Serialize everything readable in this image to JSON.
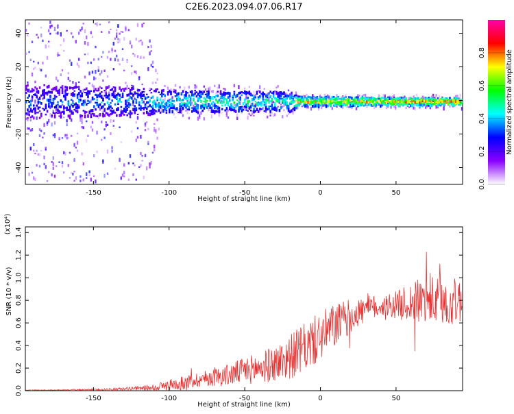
{
  "title": "C2E6.2023.094.07.06.R17",
  "chart_data": [
    {
      "type": "heatmap",
      "xlabel": "Height of straight line (km)",
      "ylabel": "Frequency (Hz)",
      "xlim": [
        -195,
        94
      ],
      "ylim": [
        -50,
        48
      ],
      "x_ticks": [
        -150,
        -100,
        -50,
        0,
        50
      ],
      "y_ticks": [
        -40,
        -20,
        0,
        20,
        40
      ],
      "colorbar": {
        "label": "Normalized spectral amplitude",
        "range": [
          0.0,
          1.0
        ],
        "ticks": [
          0.0,
          0.2,
          0.4,
          0.6,
          0.8
        ],
        "tick_labels": [
          "0.0",
          "0.2",
          "0.4",
          "0.6",
          "0.8"
        ],
        "colormap": [
          "#ffffff",
          "#8a00ff",
          "#0000ff",
          "#00ffff",
          "#00ff00",
          "#ffff00",
          "#ff0000",
          "#ff00aa"
        ]
      },
      "profile": [
        {
          "x": -195,
          "spread": 48,
          "band": 10,
          "level": 0.35
        },
        {
          "x": -150,
          "spread": 48,
          "band": 9,
          "level": 0.4
        },
        {
          "x": -115,
          "spread": 48,
          "band": 8,
          "level": 0.42
        },
        {
          "x": -105,
          "spread": 10,
          "band": 7,
          "level": 0.5
        },
        {
          "x": -60,
          "spread": 10,
          "band": 6,
          "level": 0.55
        },
        {
          "x": -20,
          "spread": 9,
          "band": 6,
          "level": 0.55
        },
        {
          "x": -15,
          "spread": 4,
          "band": 3,
          "level": 0.75
        },
        {
          "x": 94,
          "spread": 4,
          "band": 2,
          "level": 0.9
        }
      ]
    },
    {
      "type": "line",
      "xlabel": "Height of straight line (km)",
      "ylabel": "SNR (10 * v/v)",
      "y_multiplier": "(x10⁴)",
      "xlim": [
        -195,
        94
      ],
      "ylim": [
        0.0,
        1.45
      ],
      "x_ticks": [
        -150,
        -100,
        -50,
        0,
        50
      ],
      "y_ticks": [
        0.0,
        0.2,
        0.4,
        0.6,
        0.8,
        1.0,
        1.2,
        1.4
      ],
      "y_tick_labels": [
        "0.0",
        "0.2",
        "0.4",
        "0.6",
        "0.8",
        "1.0",
        "1.2",
        "1.4"
      ],
      "color": "#e83030",
      "x": [
        -195,
        -180,
        -160,
        -140,
        -120,
        -110,
        -100,
        -90,
        -80,
        -70,
        -60,
        -50,
        -40,
        -30,
        -20,
        -10,
        0,
        10,
        20,
        30,
        40,
        50,
        60,
        70,
        80,
        94
      ],
      "y": [
        0.005,
        0.005,
        0.008,
        0.01,
        0.02,
        0.03,
        0.05,
        0.07,
        0.1,
        0.12,
        0.14,
        0.18,
        0.2,
        0.24,
        0.3,
        0.38,
        0.48,
        0.58,
        0.66,
        0.72,
        0.75,
        0.76,
        0.78,
        0.8,
        0.78,
        0.8
      ],
      "y_noise": [
        0.003,
        0.003,
        0.005,
        0.01,
        0.02,
        0.03,
        0.05,
        0.06,
        0.07,
        0.08,
        0.1,
        0.12,
        0.14,
        0.16,
        0.2,
        0.22,
        0.22,
        0.2,
        0.15,
        0.12,
        0.1,
        0.12,
        0.18,
        0.22,
        0.22,
        0.2
      ]
    }
  ]
}
